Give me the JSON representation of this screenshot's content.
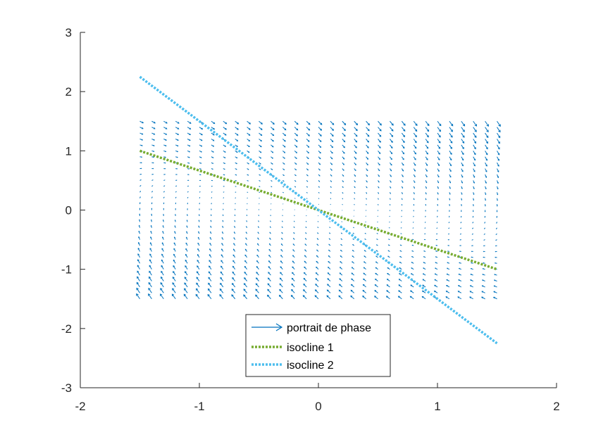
{
  "chart_data": {
    "type": "line",
    "title": "",
    "xlabel": "",
    "ylabel": "",
    "xlim": [
      -2,
      2
    ],
    "ylim": [
      -3,
      3
    ],
    "x_ticks": [
      -2,
      -1,
      0,
      1,
      2
    ],
    "y_ticks": [
      -3,
      -2,
      -1,
      0,
      1,
      2,
      3
    ],
    "grid": false,
    "legend_position": "bottom-center",
    "series": [
      {
        "name": "portrait de phase",
        "kind": "quiver",
        "color": "#0072bd",
        "x_range": [
          -1.5,
          1.5
        ],
        "y_range": [
          -1.5,
          1.5
        ],
        "grid_points": [
          31,
          31
        ],
        "field": {
          "dx": "y",
          "dy": "-x - 2*y"
        }
      },
      {
        "name": "isocline 1",
        "kind": "line",
        "color": "#77ac30",
        "style": "dotted",
        "x": [
          -1.5,
          1.5
        ],
        "y": [
          1.0,
          -1.0
        ]
      },
      {
        "name": "isocline 2",
        "kind": "line",
        "color": "#4dbeee",
        "style": "dotted",
        "x": [
          -1.5,
          1.5
        ],
        "y": [
          2.25,
          -2.25
        ]
      }
    ]
  }
}
